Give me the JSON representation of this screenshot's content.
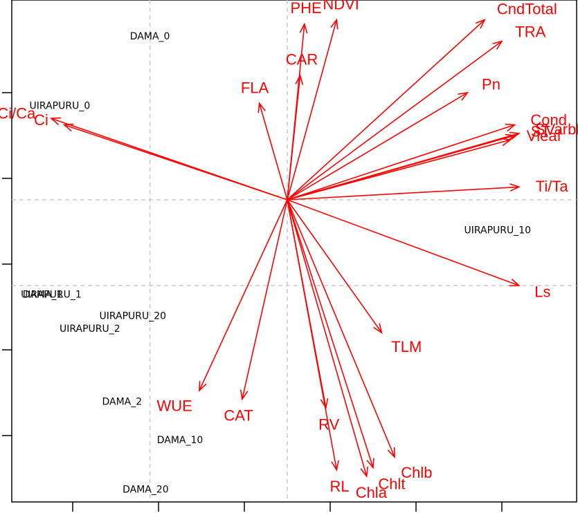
{
  "chart_data": {
    "type": "scatter",
    "subtype": "pca-biplot",
    "title": "",
    "xlabel": "",
    "ylabel": "",
    "grid": "dashed lines at zero",
    "arrow_color": "#ff0000",
    "observation_color": "#000000",
    "observations": [
      {
        "name": "DAMA_0",
        "x": -3.2,
        "y": 3.82
      },
      {
        "name": "UIRAPURU_0",
        "x": -5.3,
        "y": 2.2
      },
      {
        "name": "UIRAPURU_10",
        "x": 4.9,
        "y": -0.7
      },
      {
        "name": "UIRAPURU_1",
        "x": -5.5,
        "y": -2.2
      },
      {
        "name": "DAMA_1",
        "x": -5.7,
        "y": -2.2
      },
      {
        "name": "UIRAPURU_20",
        "x": -3.6,
        "y": -2.7
      },
      {
        "name": "UIRAPURU_2",
        "x": -4.6,
        "y": -3.0
      },
      {
        "name": "DAMA_2",
        "x": -3.85,
        "y": -4.7
      },
      {
        "name": "DAMA_10",
        "x": -2.5,
        "y": -5.6
      },
      {
        "name": "DAMA_20",
        "x": -3.3,
        "y": -6.75
      }
    ],
    "variables": [
      {
        "name": "NDVI",
        "x": 1.15,
        "y": 4.2
      },
      {
        "name": "PHE",
        "x": 0.4,
        "y": 4.1
      },
      {
        "name": "CAR",
        "x": 0.3,
        "y": 2.9
      },
      {
        "name": "FLA",
        "x": -0.65,
        "y": 2.25
      },
      {
        "name": "CndTotal",
        "x": 4.6,
        "y": 4.2
      },
      {
        "name": "TRA",
        "x": 5.0,
        "y": 3.7
      },
      {
        "name": "Pn",
        "x": 4.2,
        "y": 2.5
      },
      {
        "name": "Cond",
        "x": 5.3,
        "y": 1.75
      },
      {
        "name": "SVarbF",
        "x": 5.4,
        "y": 1.55
      },
      {
        "name": "ST",
        "x": 5.3,
        "y": 1.5
      },
      {
        "name": "Vleaf",
        "x": 5.2,
        "y": 1.4
      },
      {
        "name": "Ti/Ta",
        "x": 5.4,
        "y": 0.3
      },
      {
        "name": "Ls",
        "x": 5.4,
        "y": -2.0
      },
      {
        "name": "Ci/Ca",
        "x": -5.5,
        "y": 1.9
      },
      {
        "name": "Ci",
        "x": -5.2,
        "y": 1.75
      },
      {
        "name": "TLM",
        "x": 2.2,
        "y": -3.1
      },
      {
        "name": "WUE",
        "x": -2.05,
        "y": -4.45
      },
      {
        "name": "CAT",
        "x": -1.05,
        "y": -4.65
      },
      {
        "name": "RV",
        "x": 0.9,
        "y": -4.85
      },
      {
        "name": "RL",
        "x": 1.15,
        "y": -6.3
      },
      {
        "name": "Chla",
        "x": 1.85,
        "y": -6.45
      },
      {
        "name": "Chlt",
        "x": 2.0,
        "y": -6.25
      },
      {
        "name": "Chlb",
        "x": 2.5,
        "y": -6.0
      }
    ]
  }
}
